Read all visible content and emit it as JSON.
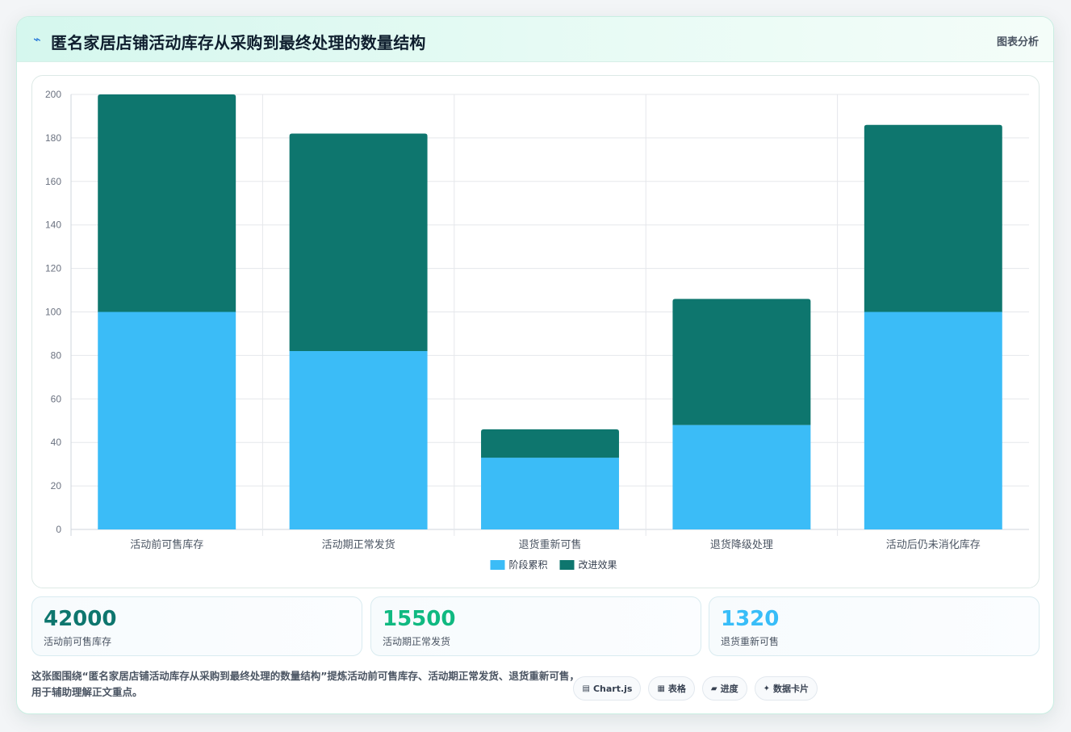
{
  "header": {
    "title": "匿名家居店铺活动库存从采购到最终处理的数量结构",
    "action_label": "图表分析"
  },
  "chart_data": {
    "type": "bar",
    "stacked": true,
    "title": "",
    "xlabel": "",
    "ylabel": "",
    "categories": [
      "活动前可售库存",
      "活动期正常发货",
      "退货重新可售",
      "退货降级处理",
      "活动后仍未消化库存"
    ],
    "series": [
      {
        "name": "阶段累积",
        "color": "#3bbcf7",
        "values": [
          100,
          82,
          33,
          48,
          100
        ]
      },
      {
        "name": "改进效果",
        "color": "#0e766e",
        "values": [
          100,
          100,
          13,
          58,
          86
        ]
      }
    ],
    "ylim": [
      0,
      200
    ],
    "yticks": [
      0,
      20,
      40,
      60,
      80,
      100,
      120,
      140,
      160,
      180,
      200
    ],
    "grid": true,
    "legend": "bottom"
  },
  "stats": [
    {
      "value": "42000",
      "label": "活动前可售库存",
      "color": "#0e766e"
    },
    {
      "value": "15500",
      "label": "活动期正常发货",
      "color": "#10b981"
    },
    {
      "value": "1320",
      "label": "退货重新可售",
      "color": "#38bdf8"
    }
  ],
  "description": "这张图围绕“匿名家居店铺活动库存从采购到最终处理的数量结构”提炼活动前可售库存、活动期正常发货、退货重新可售，用于辅助理解正文重点。",
  "chips": [
    {
      "icon": "▤",
      "icon_name": "chart-icon",
      "label": "Chart.js"
    },
    {
      "icon": "▦",
      "icon_name": "table-icon",
      "label": "表格"
    },
    {
      "icon": "▰",
      "icon_name": "progress-icon",
      "label": "进度"
    },
    {
      "icon": "✦",
      "icon_name": "sparkle-icon",
      "label": "数据卡片"
    }
  ]
}
